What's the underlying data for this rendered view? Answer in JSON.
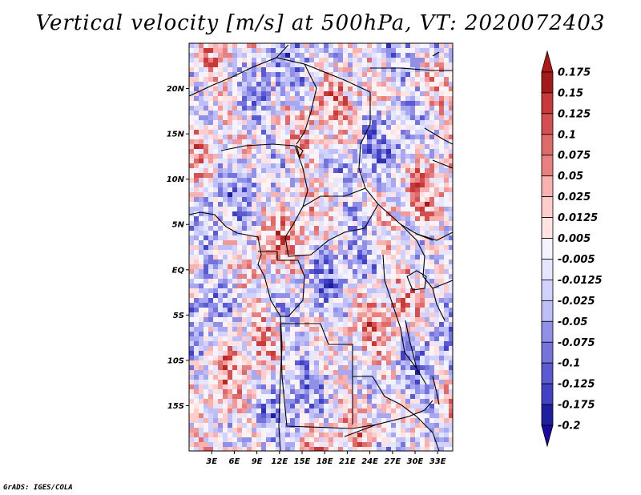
{
  "title": "Vertical velocity [m/s] at 500hPa, VT: 2020072403",
  "credit": "GrADS: IGES/COLA",
  "map": {
    "lon_range": [
      0,
      35
    ],
    "lat_range": [
      -20,
      25
    ],
    "lat_ticks": [
      {
        "value": 20,
        "label": "20N"
      },
      {
        "value": 15,
        "label": "15N"
      },
      {
        "value": 10,
        "label": "10N"
      },
      {
        "value": 5,
        "label": "5N"
      },
      {
        "value": 0,
        "label": "EQ"
      },
      {
        "value": -5,
        "label": "5S"
      },
      {
        "value": -10,
        "label": "10S"
      },
      {
        "value": -15,
        "label": "15S"
      }
    ],
    "lon_ticks": [
      {
        "value": 3,
        "label": "3E"
      },
      {
        "value": 6,
        "label": "6E"
      },
      {
        "value": 9,
        "label": "9E"
      },
      {
        "value": 12,
        "label": "12E"
      },
      {
        "value": 15,
        "label": "15E"
      },
      {
        "value": 18,
        "label": "18E"
      },
      {
        "value": 21,
        "label": "21E"
      },
      {
        "value": 24,
        "label": "24E"
      },
      {
        "value": 27,
        "label": "27E"
      },
      {
        "value": 30,
        "label": "30E"
      },
      {
        "value": 33,
        "label": "33E"
      }
    ]
  },
  "colorbar": {
    "labels": [
      "0.175",
      "0.15",
      "0.125",
      "0.1",
      "0.075",
      "0.05",
      "0.025",
      "0.0125",
      "0.005",
      "-0.005",
      "-0.0125",
      "-0.025",
      "-0.05",
      "-0.075",
      "-0.1",
      "-0.125",
      "-0.175",
      "-0.2"
    ],
    "colors": [
      "#f4f4ff",
      "#e6e6ff",
      "#d2d2ff",
      "#bebef8",
      "#a8a8f0",
      "#9090e8",
      "#7474dc",
      "#5a5ad2",
      "#4242c4",
      "#3030b4",
      "#1e1ea0",
      "#141488"
    ],
    "colors_pos": [
      "#fff2f2",
      "#ffe2e2",
      "#ffcccc",
      "#f8b2b2",
      "#f09a9a",
      "#e88080",
      "#de6a6a",
      "#d45050",
      "#c83a3a",
      "#b82828",
      "#a31a1a",
      "#8a0e0e"
    ]
  }
}
